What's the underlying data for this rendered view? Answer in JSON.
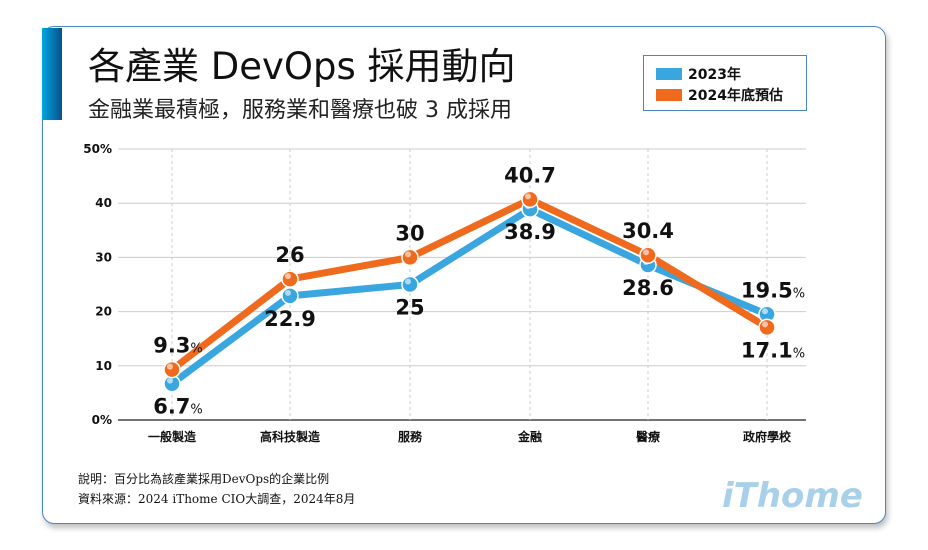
{
  "title": "各產業 DevOps 採用動向",
  "subtitle": "金融業最積極，服務業和醫療也破 3 成採用",
  "notes": [
    "說明：百分比為該產業採用DevOps的企業比例",
    "資料來源：2024 iThome CIO大調查，2024年8月"
  ],
  "logo": "iThome",
  "chart_data": {
    "type": "line",
    "categories": [
      "一般製造",
      "高科技製造",
      "服務",
      "金融",
      "醫療",
      "政府學校"
    ],
    "series": [
      {
        "name": "2023年",
        "color": "#3aa6e0",
        "values": [
          6.7,
          22.9,
          25,
          38.9,
          28.6,
          19.5
        ],
        "labels": [
          "6.7",
          "22.9",
          "25",
          "38.9",
          "28.6",
          "19.5"
        ]
      },
      {
        "name": "2024年底預估",
        "color": "#f06a1e",
        "values": [
          9.3,
          26,
          30,
          40.7,
          30.4,
          17.1
        ],
        "labels": [
          "9.3",
          "26",
          "30",
          "40.7",
          "30.4",
          "17.1"
        ]
      }
    ],
    "ylim": [
      0,
      50
    ],
    "yticks": [
      "0%",
      "10",
      "20",
      "30",
      "40",
      "50%"
    ],
    "percent_sign": "%",
    "grid": true,
    "legend": "top-right"
  }
}
